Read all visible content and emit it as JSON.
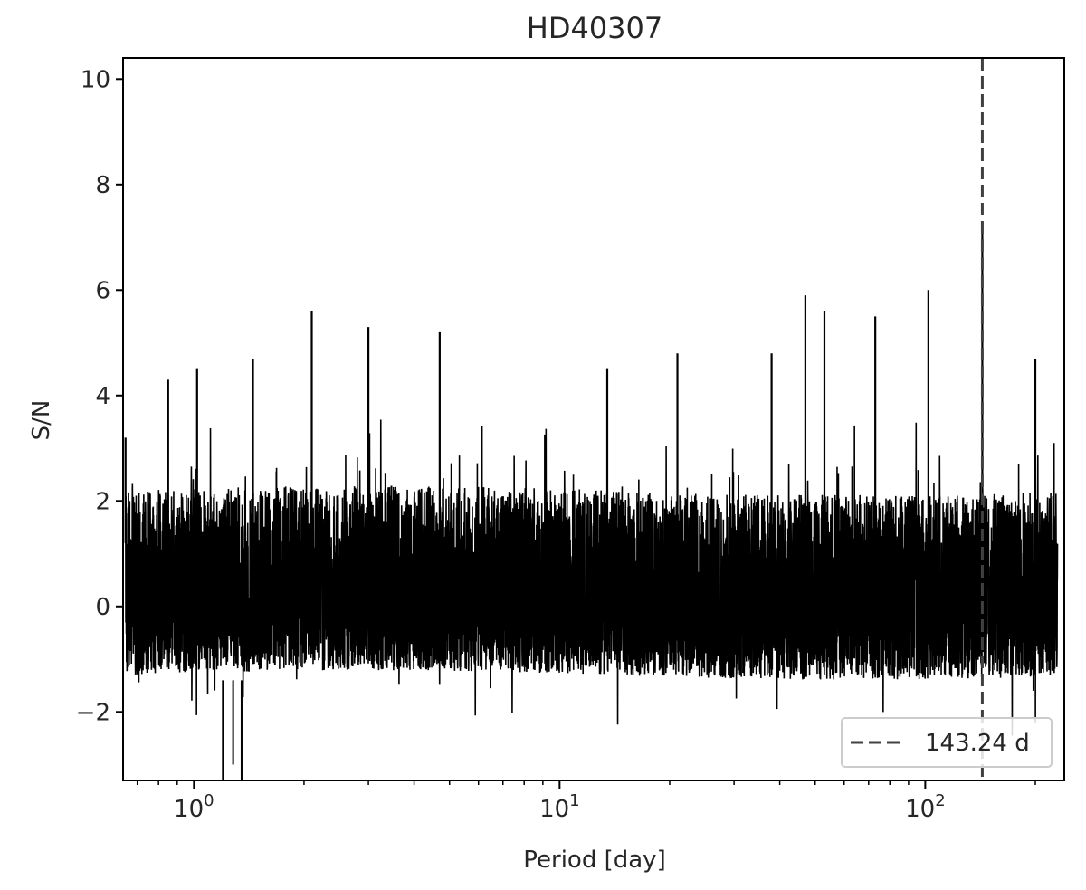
{
  "chart_data": {
    "type": "line",
    "title": "HD40307",
    "xlabel": "Period [day]",
    "ylabel": "S/N",
    "xscale": "log",
    "xlim": [
      0.64,
      240
    ],
    "ylim": [
      -3.3,
      10.4
    ],
    "x_data_range": [
      0.65,
      230
    ],
    "x_ticks": [
      {
        "value": 1,
        "base": "10",
        "exp": "0"
      },
      {
        "value": 10,
        "base": "10",
        "exp": "1"
      },
      {
        "value": 100,
        "base": "10",
        "exp": "2"
      }
    ],
    "y_ticks": [
      {
        "value": -2,
        "label": "−2"
      },
      {
        "value": 0,
        "label": "0"
      },
      {
        "value": 2,
        "label": "2"
      },
      {
        "value": 4,
        "label": "4"
      },
      {
        "value": 6,
        "label": "6"
      },
      {
        "value": 8,
        "label": "8"
      },
      {
        "value": 10,
        "label": "10"
      }
    ],
    "series": [
      {
        "color": "#000000",
        "noise_band": {
          "low": -1.3,
          "high": 2.2
        },
        "peaks": [
          {
            "x": 0.65,
            "y": 3.2
          },
          {
            "x": 0.85,
            "y": 4.3
          },
          {
            "x": 1.02,
            "y": 4.5
          },
          {
            "x": 1.45,
            "y": 4.7
          },
          {
            "x": 2.1,
            "y": 5.6
          },
          {
            "x": 3.0,
            "y": 5.3
          },
          {
            "x": 4.7,
            "y": 5.2
          },
          {
            "x": 13.5,
            "y": 4.5
          },
          {
            "x": 21,
            "y": 4.8
          },
          {
            "x": 38,
            "y": 4.8
          },
          {
            "x": 47,
            "y": 5.9
          },
          {
            "x": 53,
            "y": 5.6
          },
          {
            "x": 73,
            "y": 5.5
          },
          {
            "x": 102,
            "y": 6.0
          },
          {
            "x": 143.24,
            "y": 7.3
          },
          {
            "x": 200,
            "y": 4.7
          }
        ]
      }
    ],
    "vline": {
      "x": 143.24,
      "style": "dashed",
      "color": "#404040"
    },
    "legend": {
      "position": "bottom-right",
      "entries": [
        {
          "label": "143.24 d",
          "style": "dashed"
        }
      ]
    }
  }
}
